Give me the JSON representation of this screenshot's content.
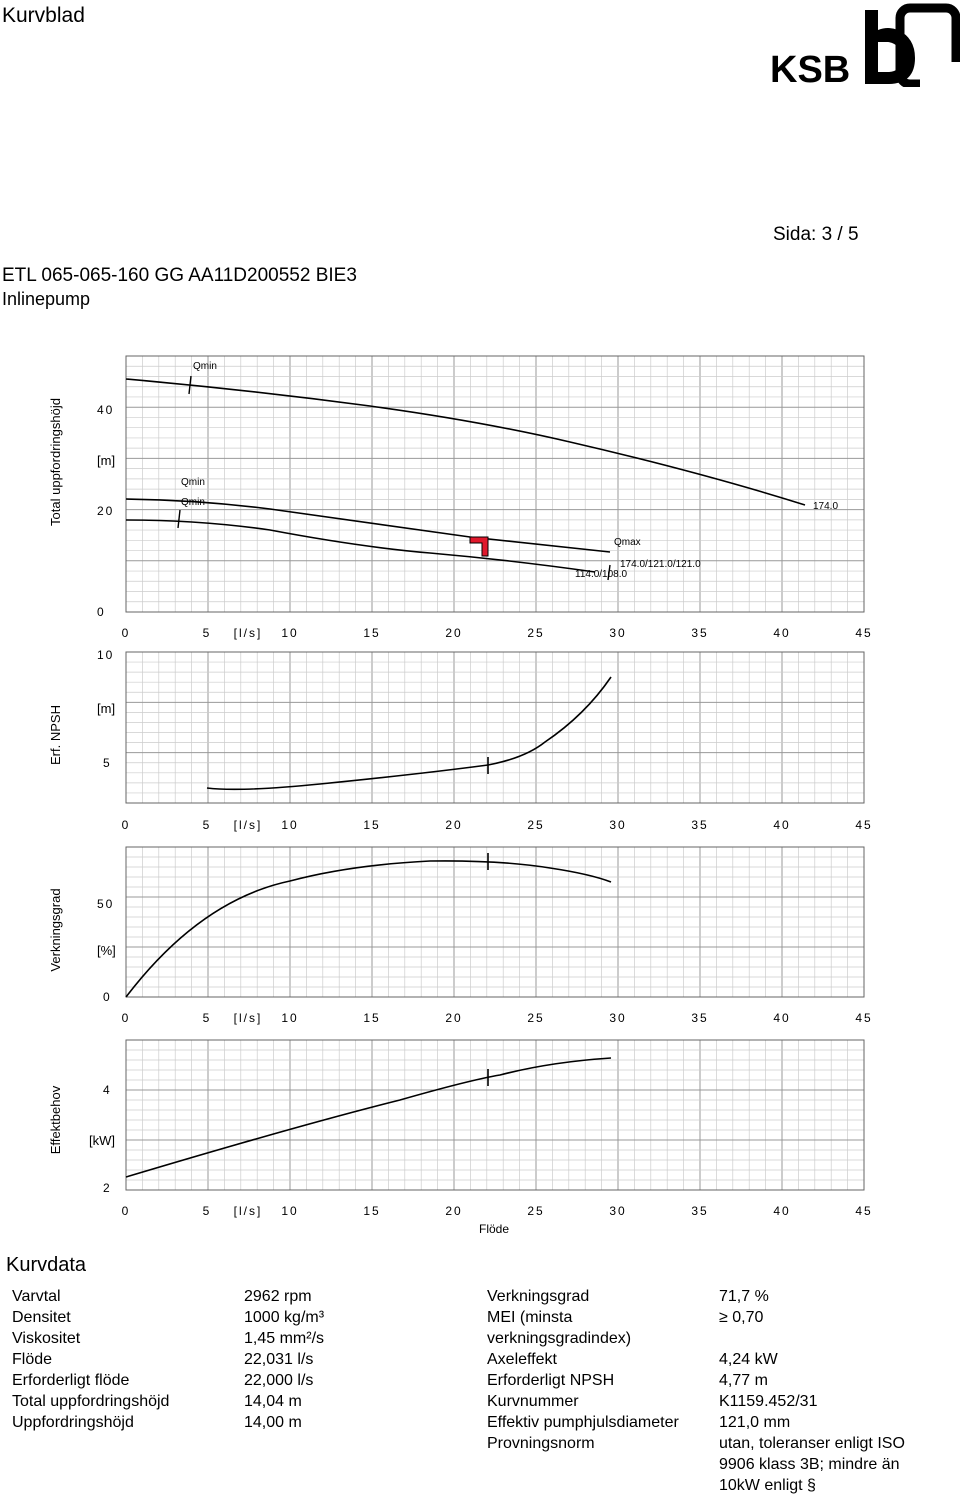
{
  "header": {
    "title": "Kurvblad",
    "page": "Sida: 3 / 5",
    "product": "ETL 065-065-160 GG AA11D200552  BIE3",
    "product_type": "Inlinepump",
    "logo_text": "KSB"
  },
  "charts": {
    "x_unit": "[l/s]",
    "x_label": "Flöde",
    "x_ticks": [
      "0",
      "5",
      "10",
      "15",
      "20",
      "25",
      "30",
      "35",
      "40",
      "45"
    ],
    "head": {
      "ylabel": "Total uppfordringshöjd",
      "unit": "[m]",
      "y_ticks": [
        "0",
        "20",
        "40"
      ],
      "labels": {
        "qmin_top": "Qmin",
        "qmin_mid": "Qmin",
        "qmin_low": "Qmin",
        "qmax": "Qmax",
        "end_top": "174.0",
        "end_mid": "174.0/121.0/121.0",
        "end_low": "114.0/108.0"
      }
    },
    "npsh": {
      "ylabel": "Erf. NPSH",
      "unit": "[m]",
      "y_ticks": [
        "5",
        "10"
      ]
    },
    "eff": {
      "ylabel": "Verkningsgrad",
      "unit": "[%]",
      "y_ticks": [
        "0",
        "50"
      ]
    },
    "power": {
      "ylabel": "Effektbehov",
      "unit": "[kW]",
      "y_ticks": [
        "2",
        "4"
      ]
    }
  },
  "kurvdata": {
    "title": "Kurvdata",
    "left": [
      {
        "label": "Varvtal",
        "value": "2962 rpm"
      },
      {
        "label": "Densitet",
        "value": "1000 kg/m³"
      },
      {
        "label": "Viskositet",
        "value": "1,45 mm²/s"
      },
      {
        "label": "Flöde",
        "value": "22,031 l/s"
      },
      {
        "label": "Erforderligt flöde",
        "value": "22,000 l/s"
      },
      {
        "label": "Total uppfordringshöjd",
        "value": "14,04 m"
      },
      {
        "label": "Uppfordringshöjd",
        "value": "14,00 m"
      }
    ],
    "right": {
      "eff_label": "Verkningsgrad",
      "eff_value": "71,7 %",
      "mei_label_1": "MEI (minsta",
      "mei_label_2": "verkningsgradindex)",
      "mei_value": "≥ 0,70",
      "axel_label": "Axeleffekt",
      "axel_value": "4,24 kW",
      "npsh_label": "Erforderligt NPSH",
      "npsh_value": "4,77 m",
      "kurv_label": "Kurvnummer",
      "kurv_value": "K1159.452/31",
      "diam_label": "Effektiv pumphjulsdiameter",
      "diam_value": "121,0 mm",
      "norm_label": "Provningsnorm",
      "norm_value_1": "utan, toleranser enligt ISO",
      "norm_value_2": "9906 klass 3B; mindre än",
      "norm_value_3": "10kW enligt §"
    }
  }
}
